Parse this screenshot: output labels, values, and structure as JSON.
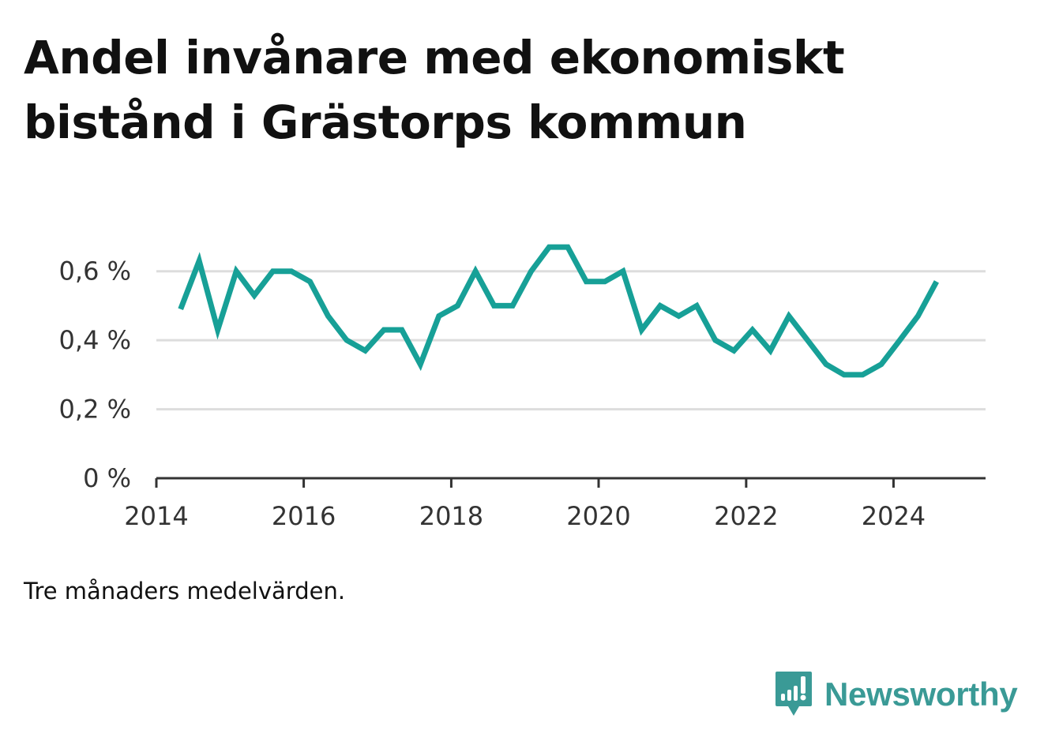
{
  "title": "Andel invånare med ekonomiskt bistånd i Grästorps kommun",
  "note": "Tre månaders medelvärden.",
  "brand": {
    "name": "Newsworthy",
    "icon": "newsworthy-logo-icon",
    "color": "#3a9a96"
  },
  "chart_data": {
    "type": "line",
    "title": "Andel invånare med ekonomiskt bistånd i Grästorps kommun",
    "xlabel": "",
    "ylabel": "",
    "x_ticks": [
      "2014",
      "2016",
      "2018",
      "2020",
      "2022",
      "2024"
    ],
    "y_ticks": [
      "0 %",
      "0,2 %",
      "0,4 %",
      "0,6 %"
    ],
    "ylim": [
      0,
      0.7
    ],
    "xlim": [
      "2014-01-01",
      "2025-04-01"
    ],
    "grid": true,
    "line_color": "#17a097",
    "series": [
      {
        "x": [
          "2014-05-01",
          "2014-08-01",
          "2014-11-01",
          "2015-02-01",
          "2015-05-01",
          "2015-08-01",
          "2015-11-01",
          "2016-02-01",
          "2016-05-01",
          "2016-08-01",
          "2016-11-01",
          "2017-02-01",
          "2017-05-01",
          "2017-08-01",
          "2017-11-01",
          "2018-02-01",
          "2018-05-01",
          "2018-08-01",
          "2018-11-01",
          "2019-02-01",
          "2019-05-01",
          "2019-08-01",
          "2019-11-01",
          "2020-02-01",
          "2020-05-01",
          "2020-08-01",
          "2020-11-01",
          "2021-02-01",
          "2021-05-01",
          "2021-08-01",
          "2021-11-01",
          "2022-02-01",
          "2022-05-01",
          "2022-08-01",
          "2022-11-01",
          "2023-02-01",
          "2023-05-01",
          "2023-08-01",
          "2023-11-01",
          "2024-02-01",
          "2024-05-01",
          "2024-08-01"
        ],
        "values": [
          0.49,
          0.63,
          0.43,
          0.6,
          0.53,
          0.6,
          0.6,
          0.57,
          0.47,
          0.4,
          0.37,
          0.43,
          0.43,
          0.33,
          0.47,
          0.5,
          0.6,
          0.5,
          0.5,
          0.6,
          0.67,
          0.67,
          0.57,
          0.57,
          0.6,
          0.43,
          0.5,
          0.47,
          0.5,
          0.4,
          0.37,
          0.43,
          0.37,
          0.47,
          0.4,
          0.33,
          0.3,
          0.3,
          0.33,
          0.4,
          0.47,
          0.57
        ]
      }
    ]
  }
}
